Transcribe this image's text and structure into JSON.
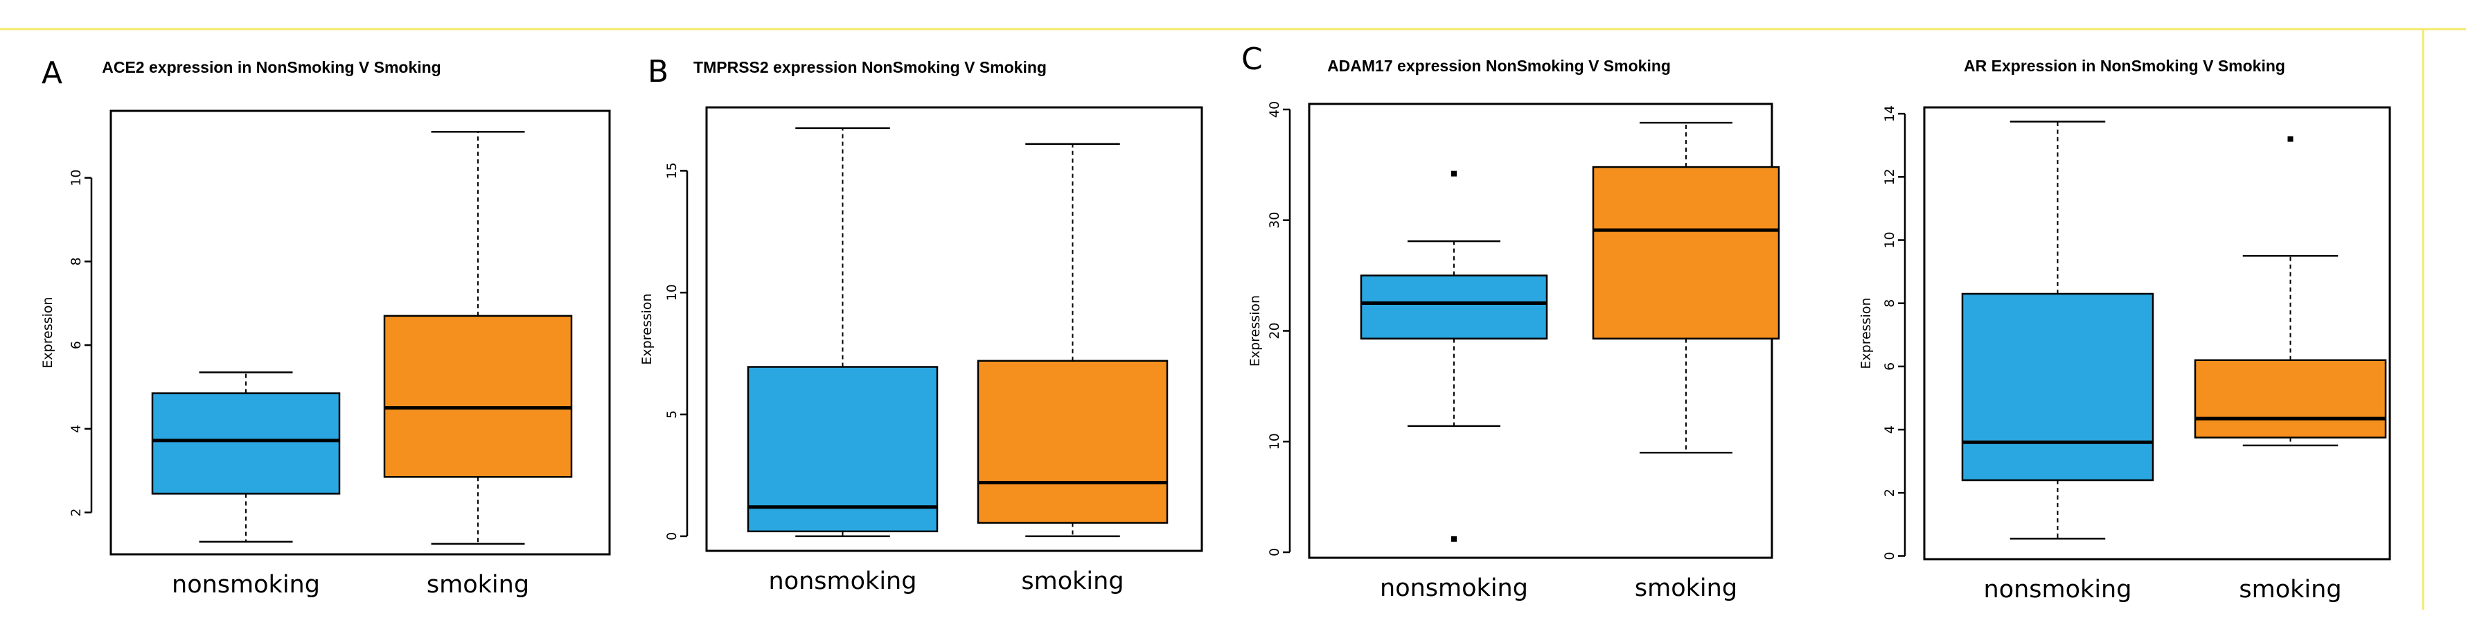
{
  "colors": {
    "nonsmoking": "#2aa7e0",
    "smoking": "#f5901e"
  },
  "chart_data": [
    {
      "type": "boxplot",
      "panel_label": "A",
      "title": "ACE2 expression in NonSmoking V Smoking",
      "ylabel": "Expression",
      "ylim": [
        1.0,
        11.6
      ],
      "yticks": [
        2,
        4,
        6,
        8,
        10
      ],
      "categories": [
        "nonsmoking",
        "smoking"
      ],
      "boxes": [
        {
          "name": "nonsmoking",
          "min": 1.3,
          "q1": 2.45,
          "median": 3.72,
          "q3": 4.85,
          "max": 5.35,
          "outliers": []
        },
        {
          "name": "smoking",
          "min": 1.25,
          "q1": 2.85,
          "median": 4.5,
          "q3": 6.7,
          "max": 11.1,
          "outliers": []
        }
      ]
    },
    {
      "type": "boxplot",
      "panel_label": "B",
      "title": "TMPRSS2 expression NonSmoking V Smoking",
      "ylabel": "Expression",
      "ylim": [
        -0.6,
        17.6
      ],
      "yticks": [
        0,
        5,
        10,
        15
      ],
      "categories": [
        "nonsmoking",
        "smoking"
      ],
      "boxes": [
        {
          "name": "nonsmoking",
          "min": 0.0,
          "q1": 0.2,
          "median": 1.2,
          "q3": 6.95,
          "max": 16.75,
          "outliers": []
        },
        {
          "name": "smoking",
          "min": 0.0,
          "q1": 0.55,
          "median": 2.2,
          "q3": 7.2,
          "max": 16.1,
          "outliers": []
        }
      ]
    },
    {
      "type": "boxplot",
      "panel_label": "C",
      "title": "ADAM17 expression NonSmoking V Smoking",
      "ylabel": "Expression",
      "ylim": [
        -0.5,
        40.5
      ],
      "yticks": [
        0,
        10,
        20,
        30,
        40
      ],
      "categories": [
        "nonsmoking",
        "smoking"
      ],
      "boxes": [
        {
          "name": "nonsmoking",
          "min": 11.4,
          "q1": 19.3,
          "median": 22.5,
          "q3": 25.0,
          "max": 28.1,
          "outliers": [
            34.2,
            1.2
          ]
        },
        {
          "name": "smoking",
          "min": 9.0,
          "q1": 19.3,
          "median": 29.1,
          "q3": 34.8,
          "max": 38.8,
          "outliers": []
        }
      ]
    },
    {
      "type": "boxplot",
      "panel_label": "",
      "title": "AR Expression in NonSmoking V Smoking",
      "ylabel": "Expression",
      "ylim": [
        -0.1,
        14.2
      ],
      "yticks": [
        0,
        2,
        4,
        6,
        8,
        10,
        12,
        14
      ],
      "categories": [
        "nonsmoking",
        "smoking"
      ],
      "boxes": [
        {
          "name": "nonsmoking",
          "min": 0.55,
          "q1": 2.4,
          "median": 3.6,
          "q3": 8.3,
          "max": 13.75,
          "outliers": []
        },
        {
          "name": "smoking",
          "min": 3.5,
          "q1": 3.75,
          "median": 4.35,
          "q3": 6.2,
          "max": 9.5,
          "outliers": [
            13.2
          ]
        }
      ]
    }
  ]
}
